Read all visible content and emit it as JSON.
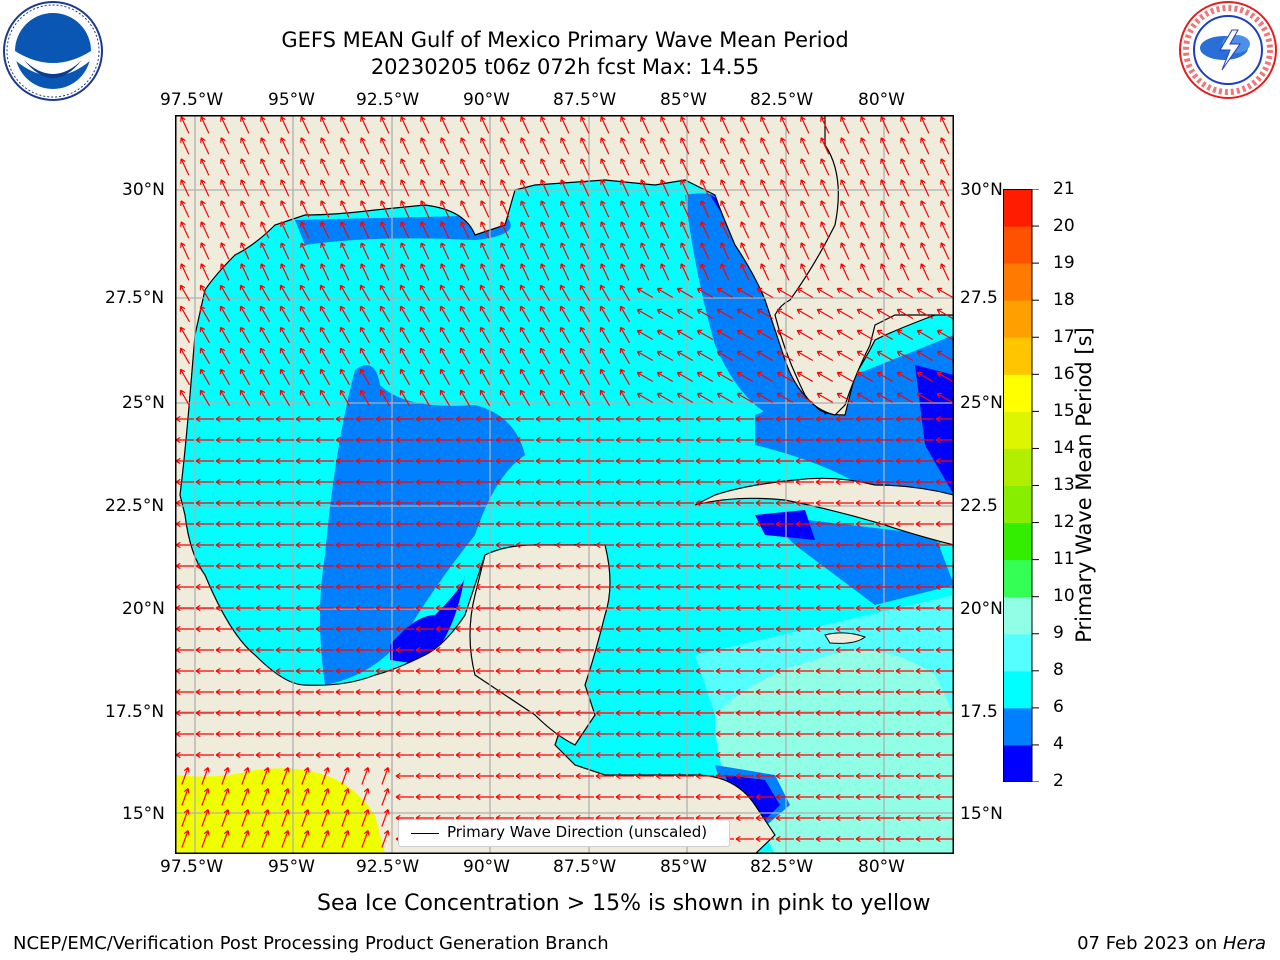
{
  "header": {
    "title_line1": "GEFS MEAN Gulf of Mexico Primary Wave Mean Period",
    "title_line2": "20230205 t06z 072h fcst   Max: 14.55"
  },
  "logos": {
    "left": "noaa-logo",
    "right": "national-weather-service-logo"
  },
  "map": {
    "lon_ticks": [
      "97.5°W",
      "95°W",
      "92.5°W",
      "90°W",
      "87.5°W",
      "85°W",
      "82.5°W",
      "80°W"
    ],
    "lat_ticks_left": [
      "30°N",
      "27.5°N",
      "25°N",
      "22.5°N",
      "20°N",
      "17.5°N",
      "15°N"
    ],
    "lat_ticks_right": [
      "30°N",
      "27.5",
      "25°N",
      "22.5",
      "20°N",
      "17.5",
      "15°N"
    ],
    "lon_range": [
      -98,
      -78.3
    ],
    "lat_range": [
      14,
      31.8
    ],
    "legend_label": "Primary Wave Direction (unscaled)",
    "colors": {
      "land": "#efecdc",
      "water_6_8": "#00ffff",
      "water_4_6": "#0080ff",
      "water_2_4": "#0000ff",
      "water_8_9": "#55ffff",
      "water_9_10": "#90ffe6",
      "ice_high": "#f0ff00",
      "arrow": "#ff0000",
      "grid": "#b0b0b0"
    }
  },
  "colorbar": {
    "label": "Primary Wave Mean Period [s]",
    "ticks": [
      "2",
      "4",
      "6",
      "8",
      "9",
      "10",
      "11",
      "12",
      "13",
      "14",
      "15",
      "16",
      "17",
      "18",
      "19",
      "20",
      "21"
    ],
    "colors": [
      "#0000ff",
      "#0080ff",
      "#00ffff",
      "#55ffff",
      "#90ffe6",
      "#33ff55",
      "#33ee00",
      "#88ee00",
      "#b2ee00",
      "#ddf500",
      "#ffff00",
      "#ffc600",
      "#ffa000",
      "#ff7a00",
      "#ff5200",
      "#ff1c00"
    ]
  },
  "bottom_note": "Sea Ice Concentration > 15% is shown in pink to yellow",
  "footer": {
    "left": "NCEP/EMC/Verification Post Processing Product Generation Branch",
    "date": "07 Feb 2023 on ",
    "host": "Hera"
  }
}
